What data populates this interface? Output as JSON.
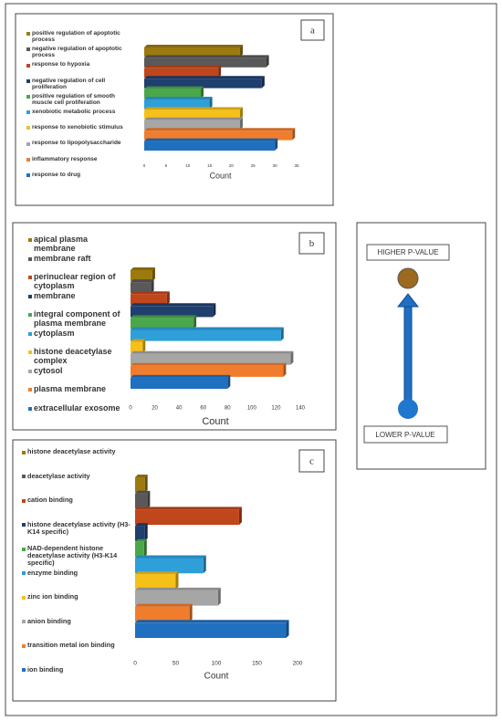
{
  "chart_data": [
    {
      "type": "bar",
      "label": "a",
      "xlabel": "Count",
      "categories": [
        "positive regulation of apoptotic process",
        "negative regulation of apoptotic process",
        "response to hypoxia",
        "negative regulation of cell proliferation",
        "positive regulation of smooth muscle cell proliferation",
        "xenobiotic metabolic process",
        "response to xenobiotic stimulus",
        "response to lipopolysaccharide",
        "inflammatory response",
        "response to drug"
      ],
      "values": [
        22,
        28,
        17,
        27,
        13,
        15,
        22,
        22,
        34,
        30
      ],
      "colors": [
        "#9c7a0e",
        "#595959",
        "#c0461b",
        "#1f3f6e",
        "#4aa84a",
        "#2e9fd9",
        "#f5c018",
        "#a6a6a6",
        "#f07d2e",
        "#2070c0"
      ],
      "xlim": [
        0,
        35
      ],
      "xticks": [
        0,
        5,
        10,
        15,
        20,
        25,
        30,
        35
      ]
    },
    {
      "type": "bar",
      "label": "b",
      "xlabel": "Count",
      "categories": [
        "apical plasma membrane",
        "membrane raft",
        "perinuclear region of cytoplasm",
        "membrane",
        "integral component of plasma membrane",
        "cytoplasm",
        "histone deacetylase complex",
        "cytosol",
        "plasma membrane",
        "extracellular exosome"
      ],
      "values": [
        18,
        17,
        30,
        68,
        52,
        124,
        10,
        132,
        126,
        80
      ],
      "colors": [
        "#9c7a0e",
        "#595959",
        "#c0461b",
        "#1f3f6e",
        "#4aa84a",
        "#2e9fd9",
        "#f5c018",
        "#a6a6a6",
        "#f07d2e",
        "#2070c0"
      ],
      "xlim": [
        0,
        140
      ],
      "xticks": [
        0,
        20,
        40,
        60,
        80,
        100,
        120,
        140
      ]
    },
    {
      "type": "bar",
      "label": "c",
      "xlabel": "Count",
      "categories": [
        "histone deacetylase activity",
        "deacetylase activity",
        "cation binding",
        "histone deacetylase activity (H3-K14 specific)",
        "NAD-dependent histone deacetylase activity (H3-K14 specific)",
        "enzyme binding",
        "zinc ion binding",
        "anion binding",
        "transition metal ion binding",
        "ion binding"
      ],
      "values": [
        12,
        15,
        128,
        12,
        11,
        84,
        50,
        102,
        67,
        186
      ],
      "colors": [
        "#9c7a0e",
        "#595959",
        "#c0461b",
        "#1f3f6e",
        "#4aa84a",
        "#2e9fd9",
        "#f5c018",
        "#a6a6a6",
        "#f07d2e",
        "#2070c0"
      ],
      "xlim": [
        0,
        200
      ],
      "xticks": [
        0,
        50,
        100,
        150,
        200
      ]
    }
  ],
  "legend_panel": {
    "top": "HIGHER P-VALUE",
    "bottom": "LOWER P-VALUE"
  }
}
